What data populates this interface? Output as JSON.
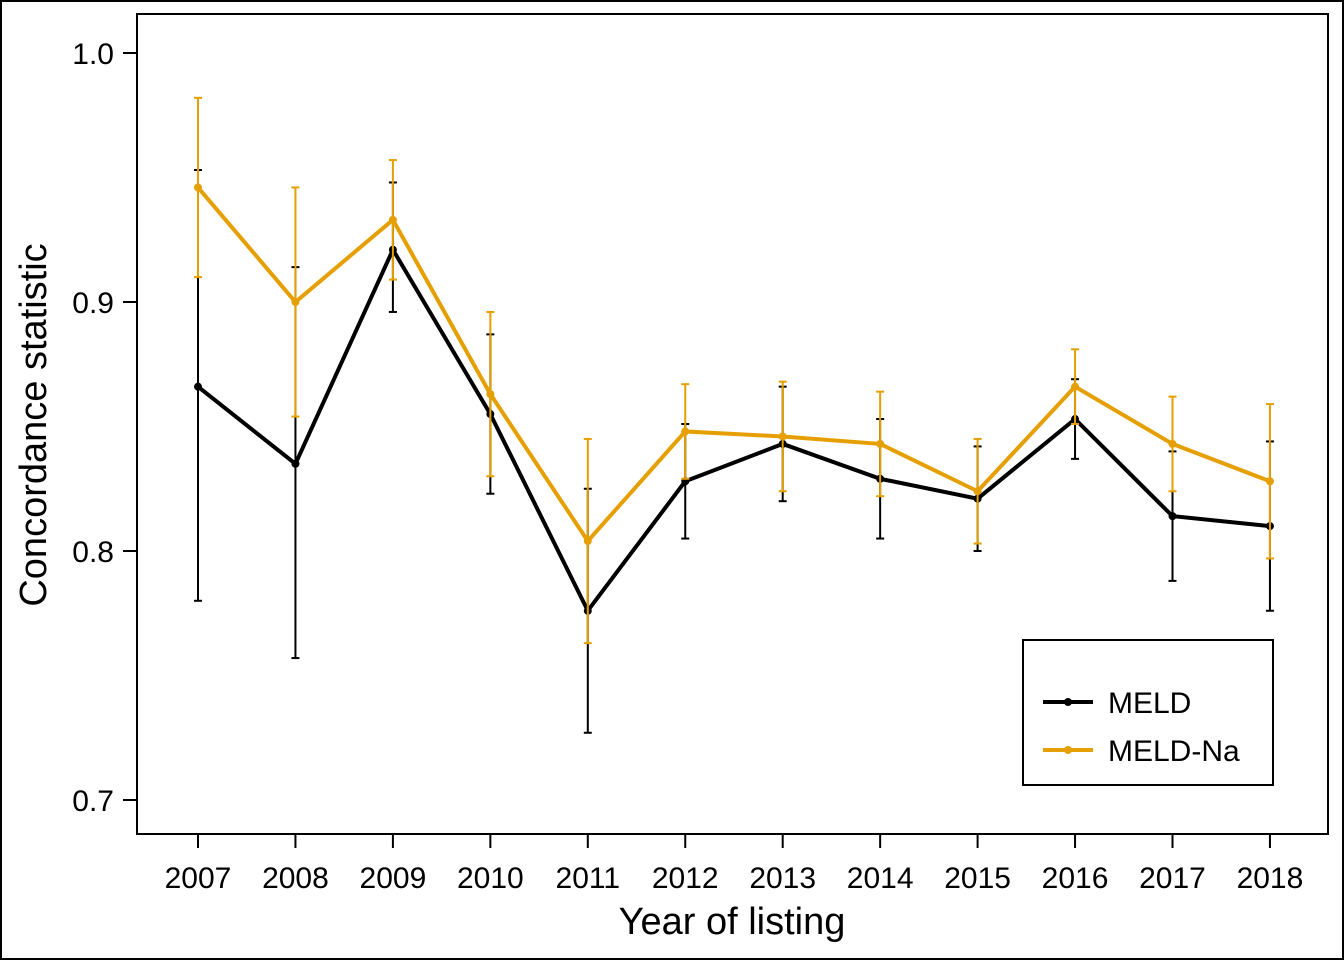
{
  "chart_data": {
    "type": "line",
    "title": "",
    "xlabel": "Year of listing",
    "ylabel": "Concordance statistic",
    "ylim": [
      0.7,
      1.0
    ],
    "y_ticks": [
      "0.7",
      "0.8",
      "0.9",
      "1.0"
    ],
    "categories": [
      "2007",
      "2008",
      "2009",
      "2010",
      "2011",
      "2012",
      "2013",
      "2014",
      "2015",
      "2016",
      "2017",
      "2018"
    ],
    "legend_position": "bottom-right",
    "grid": false,
    "series": [
      {
        "name": "MELD",
        "color": "#000000",
        "values": [
          0.866,
          0.835,
          0.921,
          0.855,
          0.776,
          0.828,
          0.843,
          0.829,
          0.821,
          0.853,
          0.814,
          0.81
        ],
        "lower": [
          0.78,
          0.757,
          0.896,
          0.823,
          0.727,
          0.805,
          0.82,
          0.805,
          0.8,
          0.837,
          0.788,
          0.776
        ],
        "upper": [
          0.953,
          0.914,
          0.948,
          0.887,
          0.825,
          0.851,
          0.866,
          0.853,
          0.842,
          0.869,
          0.84,
          0.844
        ]
      },
      {
        "name": "MELD-Na",
        "color": "#E69F00",
        "values": [
          0.946,
          0.9,
          0.933,
          0.863,
          0.804,
          0.848,
          0.846,
          0.843,
          0.824,
          0.866,
          0.843,
          0.828
        ],
        "lower": [
          0.91,
          0.854,
          0.909,
          0.83,
          0.763,
          0.829,
          0.824,
          0.822,
          0.803,
          0.851,
          0.824,
          0.797
        ],
        "upper": [
          0.982,
          0.946,
          0.957,
          0.896,
          0.845,
          0.867,
          0.868,
          0.864,
          0.845,
          0.881,
          0.862,
          0.859
        ]
      }
    ]
  }
}
